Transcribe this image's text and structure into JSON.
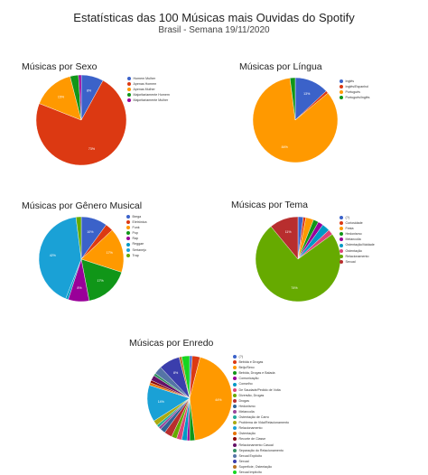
{
  "page": {
    "title": "Estatísticas das 100 Músicas mais Ouvidas do Spotify",
    "subtitle": "Brasil - Semana 19/11/2020"
  },
  "chart_data": [
    {
      "type": "pie",
      "title": "Músicas por Sexo",
      "legend_position": "right",
      "categories": [
        "Homem Mulher",
        "Apenas Homem",
        "Apenas Mulher",
        "Majoritariamente Homem",
        "Majoritariamente Mulher"
      ],
      "values": [
        8,
        73,
        15,
        3,
        1
      ],
      "colors": [
        "#3b62c9",
        "#dc3912",
        "#ff9900",
        "#109618",
        "#990099"
      ],
      "labels": [
        "8%",
        "73%",
        "15%",
        "",
        ""
      ]
    },
    {
      "type": "pie",
      "title": "Músicas por Língua",
      "legend_position": "right",
      "categories": [
        "Inglês",
        "Inglês/Espanhol",
        "Português",
        "Português/Inglês"
      ],
      "values": [
        13,
        1,
        84,
        2
      ],
      "colors": [
        "#3b62c9",
        "#dc3912",
        "#ff9900",
        "#109618"
      ],
      "labels": [
        "13%",
        "",
        "84%",
        ""
      ]
    },
    {
      "type": "pie",
      "title": "Músicas por Gênero Musical",
      "legend_position": "right",
      "categories": [
        "Brega",
        "Eletrônica",
        "Funk",
        "Pop",
        "Rap",
        "Reggae",
        "Sertanejo",
        "Trap"
      ],
      "values": [
        10,
        3,
        17,
        17,
        8,
        1,
        42,
        2
      ],
      "colors": [
        "#3b62c9",
        "#dc3912",
        "#ff9900",
        "#109618",
        "#990099",
        "#0099c6",
        "#1aa1d6",
        "#66aa00"
      ],
      "labels": [
        "10%",
        "",
        "17%",
        "17%",
        "8%",
        "",
        "42%",
        ""
      ]
    },
    {
      "type": "pie",
      "title": "Músicas por Tema",
      "legend_position": "right",
      "categories": [
        "(?)",
        "Curiosidade",
        "Festa",
        "Hedonismo",
        "Melancolia",
        "Ostentação/Vaidade",
        "Ostentação",
        "Relacionamento",
        "Sexual"
      ],
      "values": [
        2,
        1,
        3,
        2,
        2,
        3,
        2,
        74,
        11
      ],
      "colors": [
        "#3b62c9",
        "#dc3912",
        "#ff9900",
        "#109618",
        "#990099",
        "#0099c6",
        "#dd4477",
        "#66aa00",
        "#b82e2e"
      ],
      "labels": [
        "",
        "",
        "",
        "",
        "",
        "",
        "",
        "74%",
        "11%"
      ]
    },
    {
      "type": "pie",
      "title": "Músicas por Enredo",
      "legend_position": "right",
      "categories": [
        "(?)",
        "Bebida e Drogas",
        "Beijo/Sexo",
        "Bebida, Drogas e Balada",
        "Comunicação",
        "Conselho",
        "De Saudade/Pedido de Volta",
        "Diversão, Drogas",
        "Drogas",
        "Hedonismo",
        "Melancolia",
        "Ostentação de Carro",
        "Problema de Vida/Relacionamento",
        "Relacionamento",
        "Ostentação",
        "Recorte de Classe",
        "Relacionamento Casual",
        "Separação do Relacionamento",
        "Sexual Explícito",
        "Sexual",
        "Superfície, Ostentação",
        "Sexual Implícito"
      ],
      "values": [
        1,
        3,
        44,
        2,
        1,
        2,
        2,
        2,
        3,
        2,
        1,
        1,
        2,
        14,
        1,
        1,
        2,
        1,
        3,
        8,
        1,
        3
      ],
      "colors": [
        "#3b62c9",
        "#dc3912",
        "#ff9900",
        "#109618",
        "#990099",
        "#0099c6",
        "#dd4477",
        "#66aa00",
        "#b82e2e",
        "#316395",
        "#994499",
        "#22aa99",
        "#aaaa11",
        "#1aa1d6",
        "#e67300",
        "#8b0707",
        "#651067",
        "#329262",
        "#5574a6",
        "#3b3eac",
        "#b77322",
        "#16d620"
      ],
      "labels": [
        "",
        "",
        "44%",
        "",
        "",
        "",
        "",
        "",
        "",
        "",
        "",
        "",
        "",
        "14%",
        "",
        "",
        "",
        "",
        "",
        "8%",
        "",
        ""
      ]
    }
  ]
}
